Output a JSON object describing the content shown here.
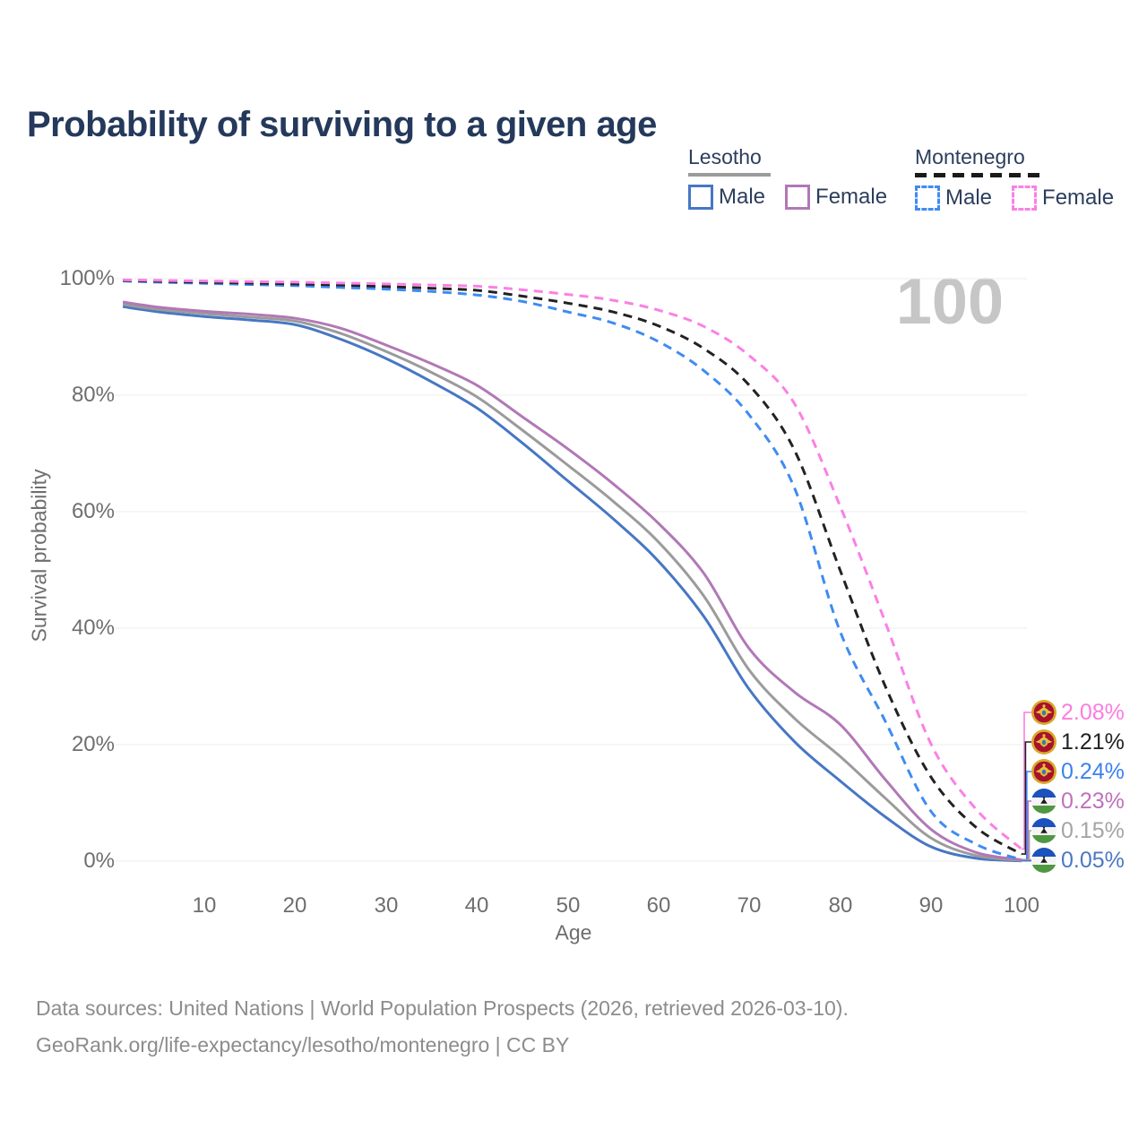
{
  "title": "Probability of surviving to a given age",
  "watermark_age": "100",
  "legend": {
    "groups": [
      {
        "country": "Lesotho",
        "line_style": "solid",
        "underline_color": "#9b9b9b",
        "items": [
          {
            "label": "Male",
            "color": "#4677c4"
          },
          {
            "label": "Female",
            "color": "#b178b6"
          }
        ]
      },
      {
        "country": "Montenegro",
        "line_style": "dashed",
        "underline_color": "#1a1a1a",
        "items": [
          {
            "label": "Male",
            "color": "#3f8bf2"
          },
          {
            "label": "Female",
            "color": "#fb80e5"
          }
        ]
      }
    ]
  },
  "chart_data": {
    "type": "line",
    "title": "Probability of surviving to a given age",
    "xlabel": "Age",
    "ylabel": "Survival probability",
    "xlim": [
      0,
      100
    ],
    "ylim": [
      0,
      100
    ],
    "grid": "horizontal-only",
    "legend_position": "top-right",
    "x_ticks": [
      10,
      20,
      30,
      40,
      50,
      60,
      70,
      80,
      90,
      100
    ],
    "x_tick_labels": [
      "10",
      "20",
      "30",
      "40",
      "50",
      "60",
      "70",
      "80",
      "90",
      "100"
    ],
    "y_ticks": [
      0,
      20,
      40,
      60,
      80,
      100
    ],
    "y_tick_labels_top_down": [
      "100%",
      "80%",
      "60%",
      "40%",
      "20%",
      "0%"
    ],
    "ages": [
      1,
      5,
      10,
      15,
      20,
      25,
      30,
      35,
      40,
      45,
      50,
      55,
      60,
      65,
      70,
      75,
      80,
      85,
      90,
      95,
      100
    ],
    "series": [
      {
        "name": "Lesotho Male",
        "country": "Lesotho",
        "sex": "Male",
        "color": "#4677c4",
        "line_style": "solid",
        "values": [
          95.2,
          94.3,
          93.5,
          92.9,
          92.1,
          89.6,
          86.3,
          82.3,
          77.8,
          71.8,
          65.3,
          58.8,
          51.5,
          42.0,
          29.5,
          20.5,
          13.8,
          7.6,
          2.5,
          0.5,
          0.05
        ]
      },
      {
        "name": "Lesotho Both sexes",
        "country": "Lesotho",
        "sex": "All",
        "color": "#9b9b9b",
        "line_style": "solid",
        "values": [
          95.6,
          94.7,
          94.0,
          93.4,
          92.7,
          90.6,
          87.5,
          83.9,
          79.7,
          74.0,
          68.0,
          61.8,
          54.8,
          45.5,
          32.8,
          24.5,
          18.0,
          10.8,
          4.0,
          0.95,
          0.15
        ]
      },
      {
        "name": "Lesotho Female",
        "country": "Lesotho",
        "sex": "Female",
        "color": "#b178b6",
        "line_style": "solid",
        "values": [
          96.0,
          95.1,
          94.4,
          93.9,
          93.2,
          91.5,
          88.6,
          85.4,
          81.7,
          76.3,
          70.8,
          64.8,
          58.0,
          49.4,
          36.5,
          29.0,
          23.5,
          14.0,
          5.5,
          1.5,
          0.23
        ]
      },
      {
        "name": "Montenegro Male",
        "country": "Montenegro",
        "sex": "Male",
        "color": "#3f8bf2",
        "line_style": "dashed",
        "values": [
          99.6,
          99.4,
          99.2,
          99.0,
          98.8,
          98.5,
          98.2,
          97.8,
          97.2,
          96.1,
          94.3,
          92.4,
          89.2,
          84.2,
          76.6,
          64.0,
          39.5,
          24.0,
          8.6,
          2.9,
          0.24
        ]
      },
      {
        "name": "Montenegro Both sexes",
        "country": "Montenegro",
        "sex": "All",
        "color": "#222222",
        "line_style": "dashed",
        "values": [
          99.7,
          99.55,
          99.4,
          99.25,
          99.1,
          98.9,
          98.65,
          98.35,
          98.0,
          97.0,
          95.8,
          94.3,
          91.9,
          88.0,
          81.7,
          70.5,
          50.0,
          30.0,
          14.5,
          5.8,
          1.21
        ]
      },
      {
        "name": "Montenegro Female",
        "country": "Montenegro",
        "sex": "Female",
        "color": "#fb80e5",
        "line_style": "dashed",
        "values": [
          99.8,
          99.7,
          99.6,
          99.5,
          99.4,
          99.25,
          99.1,
          98.9,
          98.7,
          98.1,
          97.3,
          96.3,
          94.6,
          91.8,
          86.8,
          78.5,
          61.0,
          41.0,
          20.2,
          8.9,
          2.08
        ]
      }
    ]
  },
  "end_labels": [
    {
      "flag": "montenegro-flag",
      "series": "Montenegro Female",
      "value_label": "2.08%",
      "value": 2.08,
      "color": "#fb7ce1"
    },
    {
      "flag": "montenegro-flag",
      "series": "Montenegro Both sexes",
      "value_label": "1.21%",
      "value": 1.21,
      "color": "#222222"
    },
    {
      "flag": "montenegro-flag",
      "series": "Montenegro Male",
      "value_label": "0.24%",
      "value": 0.24,
      "color": "#3c82ee"
    },
    {
      "flag": "lesotho-flag",
      "series": "Lesotho Female",
      "value_label": "0.23%",
      "value": 0.23,
      "color": "#bf71bd"
    },
    {
      "flag": "lesotho-flag",
      "series": "Lesotho Both sexes",
      "value_label": "0.15%",
      "value": 0.15,
      "color": "#a5a5a5"
    },
    {
      "flag": "lesotho-flag",
      "series": "Lesotho Male",
      "value_label": "0.05%",
      "value": 0.05,
      "color": "#4c78c2"
    }
  ],
  "footer": {
    "line1": "Data sources: United Nations | World Population Prospects (2026, retrieved 2026-03-10).",
    "line2": "GeoRank.org/life-expectancy/lesotho/montenegro | CC BY"
  }
}
